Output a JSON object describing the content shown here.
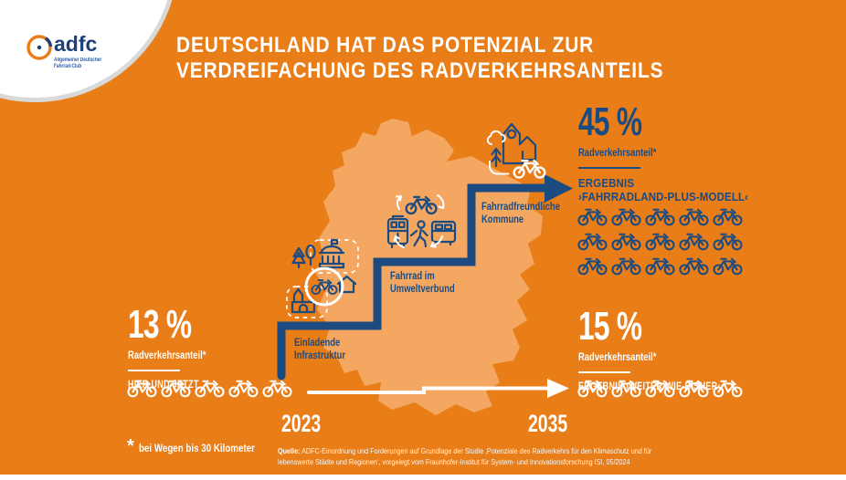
{
  "colors": {
    "background_orange": "#E97D17",
    "map_orange": "#F3A761",
    "navy_blue": "#1B4B80",
    "white": "#FFFFFF",
    "logo_ring_gray": "#D9D9D9",
    "logo_blue": "#2B5AA6"
  },
  "logo": {
    "brand": "adfc",
    "line1": "Allgemeiner Deutscher",
    "line2": "Fahrrad-Club"
  },
  "title": {
    "line1": "DEUTSCHLAND HAT DAS POTENZIAL ZUR",
    "line2": "VERDREIFACHUNG DES RADVERKEHRSANTEILS"
  },
  "stat_now": {
    "value": "13 %",
    "label": "Radverkehrsanteil*",
    "caption": "HIER UND JETZT",
    "bike_count": 5
  },
  "stat_plus": {
    "value": "45 %",
    "label": "Radverkehrsanteil*",
    "caption_line1": "ERGEBNIS",
    "caption_line2": "›FAHRRADLAND-PLUS-MODELL‹",
    "bike_count": 15,
    "bikes_per_row": 5
  },
  "stat_base": {
    "value": "15 %",
    "label": "Radverkehrsanteil*",
    "caption": "ERGEBNIS ›WEITER-WIE-BISHER‹",
    "bike_count": 5
  },
  "steps": [
    {
      "line1": "Einladende",
      "line2": "Infrastruktur",
      "icon": "village-infrastructure-icons"
    },
    {
      "line1": "Fahrrad im",
      "line2": "Umweltverbund",
      "icon": "bike-transit-cycle-icons"
    },
    {
      "line1": "Fahrradfreundliche",
      "line2": "Kommune",
      "icon": "bike-friendly-town-icons"
    }
  ],
  "timeline": {
    "start_year": "2023",
    "end_year": "2035"
  },
  "footnote": {
    "mark": "*",
    "text": "bei Wegen bis 30 Kilometer"
  },
  "source": {
    "label": "Quelle:",
    "text": " ADFC-Einordnung und Forderungen auf Grundlage der Studie ‚Potenziale des Radverkehrs für den Klimaschutz und für lebenswerte Städte und Regionen‘, vorgelegt vom Fraunhofer-Institut für System- und Innovationsforschung ISI, 05/2024"
  },
  "icons": {
    "adfc-wheel-icon": "circle-arc-logo",
    "bike-icon": "bicycle outline",
    "tram-icon": "tram outline",
    "bus-icon": "bus outline",
    "pedestrian-icon": "walking person outline",
    "cycle-arrows-icon": "circular arrows",
    "town-hall-icon": "domed building with flag",
    "church-icon": "church with spire",
    "house-icon": "gabled house",
    "tree-icon": "fir and deciduous tree",
    "city-houses-icon": "house group with location pin",
    "cloud-icon": "cloud outline",
    "growth-tree-icon": "upward chevron tree",
    "stairs-arrow": "step line ending in arrow",
    "timeline-arrow": "horizontal arrow with step"
  },
  "chart_data": {
    "type": "pictogram",
    "unit_icon": "bike",
    "series": [
      {
        "name": "HIER UND JETZT (2023)",
        "value_pct": 13,
        "icons": 5
      },
      {
        "name": "ERGEBNIS ›FAHRRADLAND-PLUS-MODELL‹ (2035)",
        "value_pct": 45,
        "icons": 15
      },
      {
        "name": "ERGEBNIS ›WEITER-WIE-BISHER‹ (2035)",
        "value_pct": 15,
        "icons": 5
      }
    ]
  }
}
